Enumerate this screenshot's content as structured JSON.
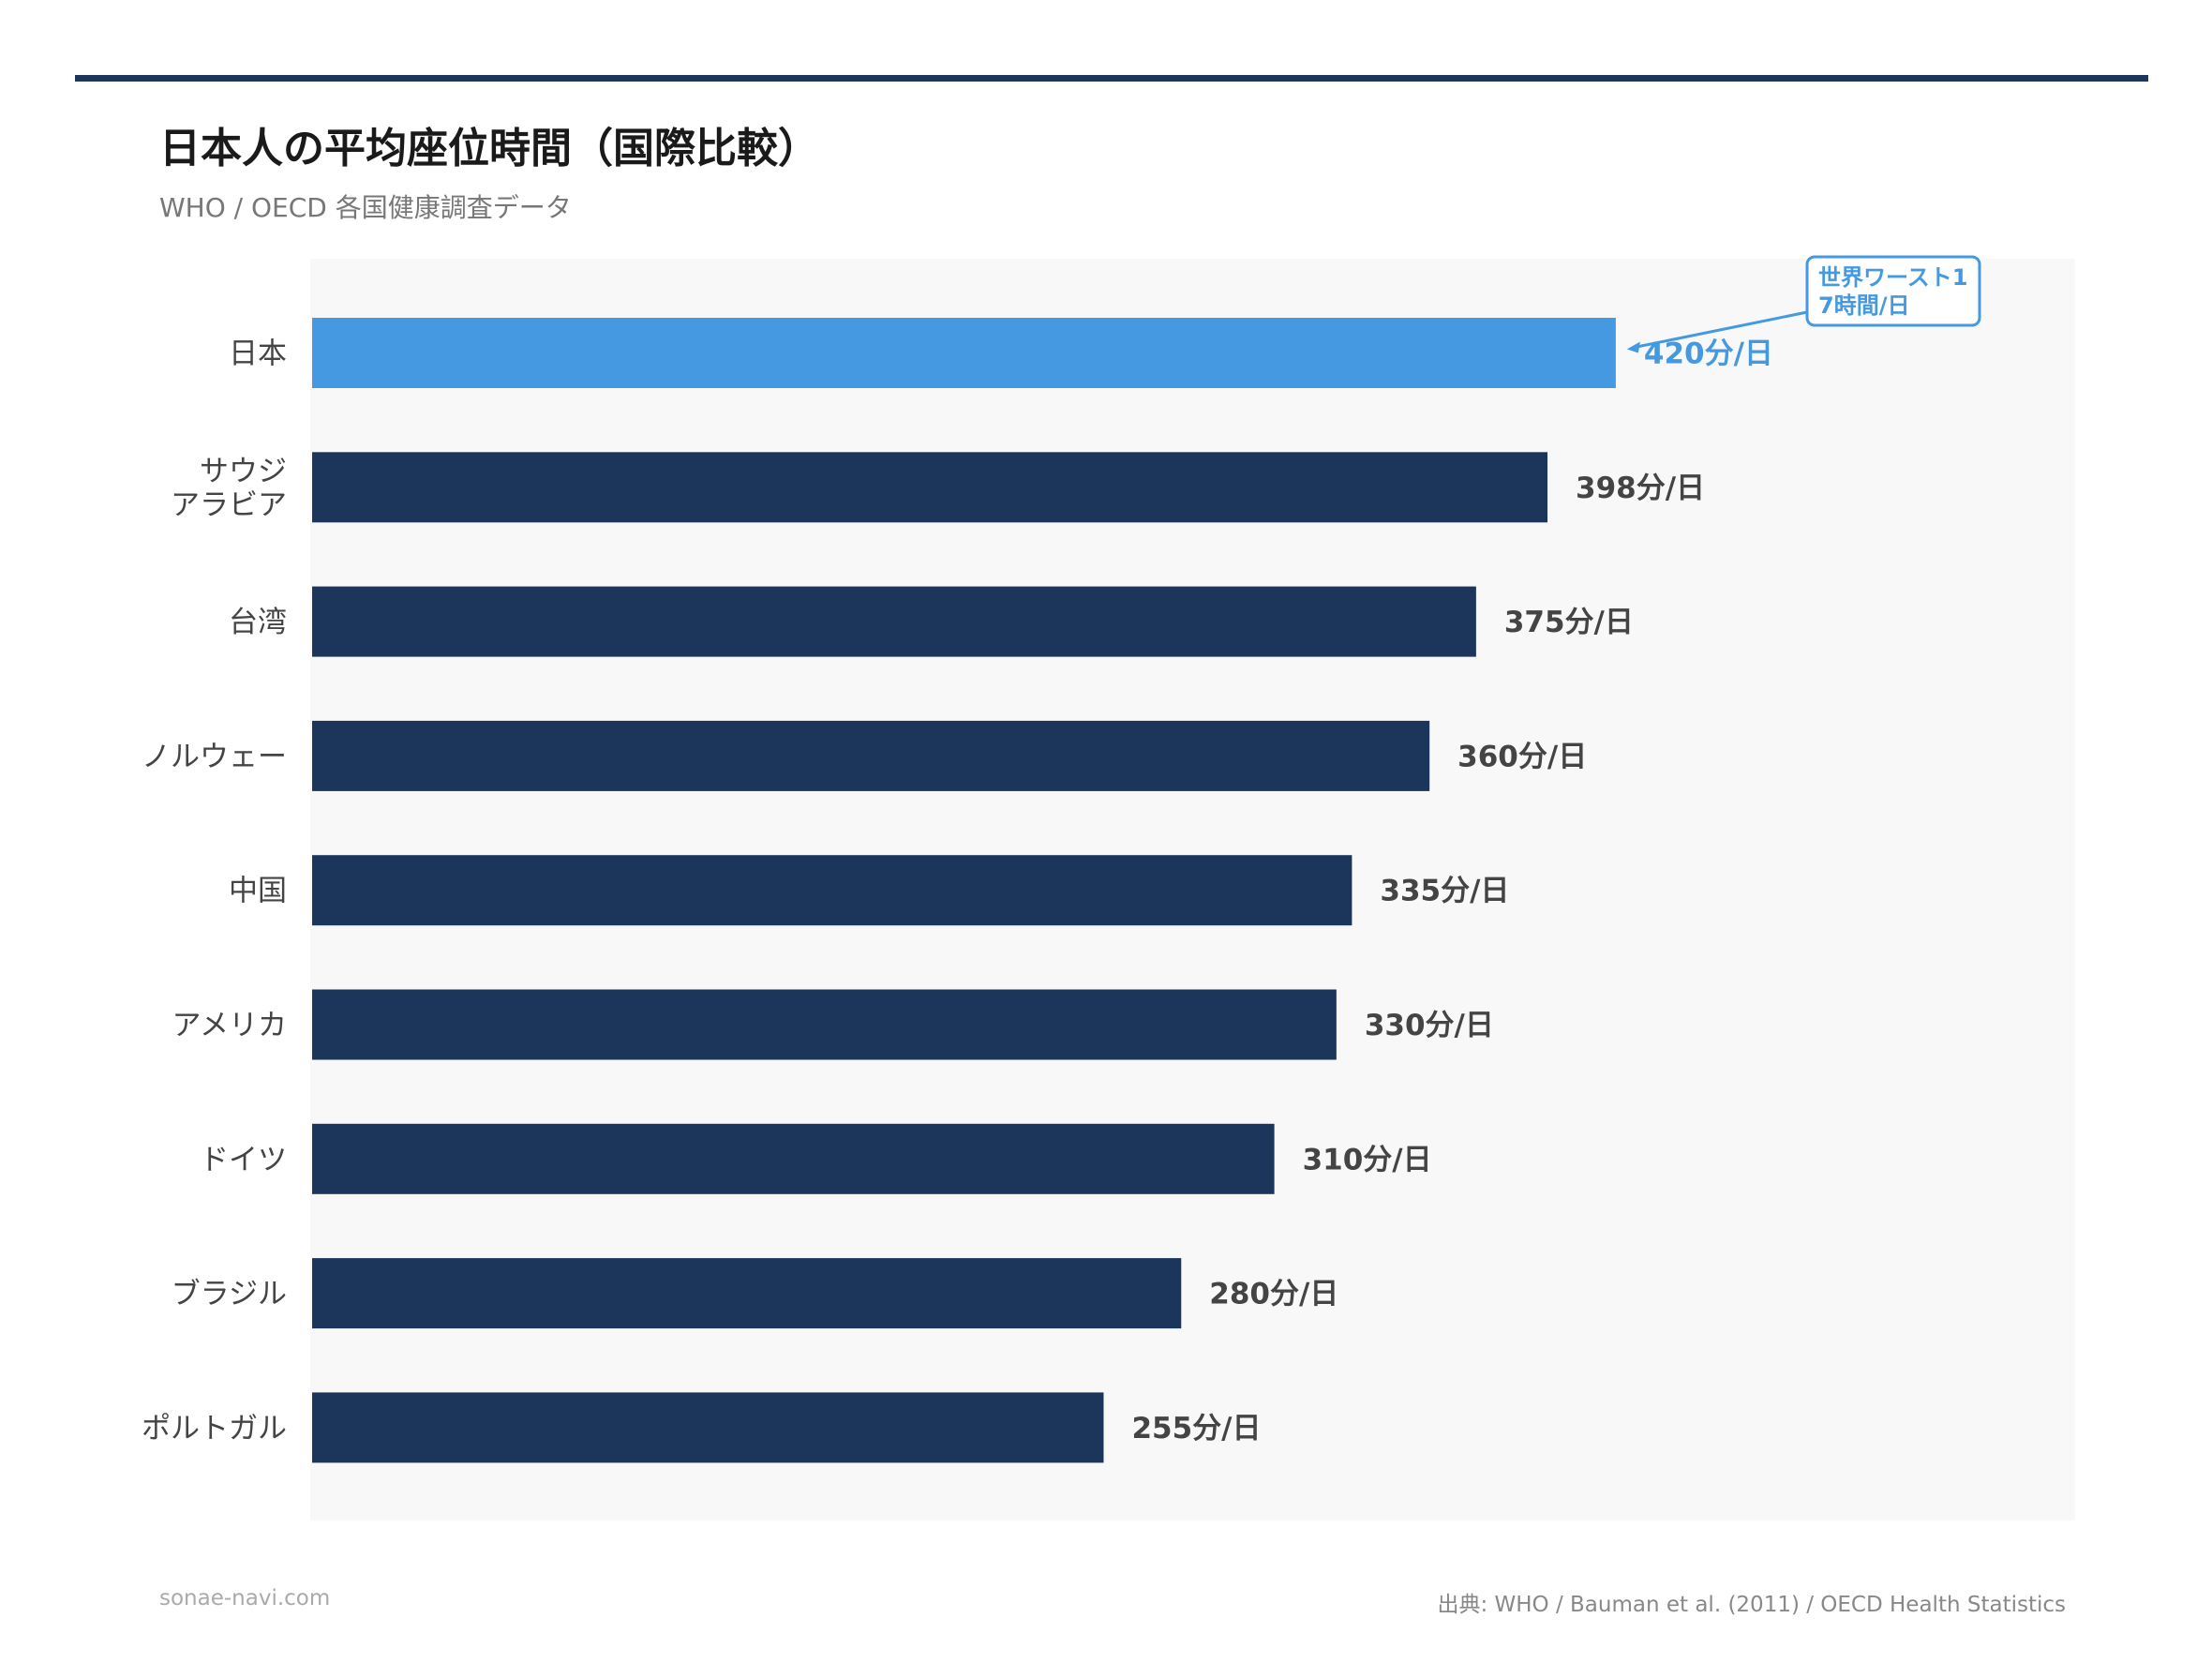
{
  "title": "日本人の平均座位時間（国際比較）",
  "subtitle": "WHO / OECD 各国健康調査データ",
  "footer": {
    "site": "sonae-navi.com",
    "source": "出典: WHO / Bauman et al. (2011) / OECD Health Statistics"
  },
  "colors": {
    "highlight": "#4499e0",
    "bar": "#1c355a",
    "plot_background": "#f8f8f8",
    "value_label": "#444444",
    "category_label": "#444444",
    "rule": "#1c355a"
  },
  "chart_data": {
    "type": "bar",
    "orientation": "horizontal",
    "categories": [
      "日本",
      "サウジ\nアラビア",
      "台湾",
      "ノルウェー",
      "中国",
      "アメリカ",
      "ドイツ",
      "ブラジル",
      "ポルトガル"
    ],
    "values": [
      420,
      398,
      375,
      360,
      335,
      330,
      310,
      280,
      255
    ],
    "value_labels": [
      "420分/日",
      "398分/日",
      "375分/日",
      "360分/日",
      "335分/日",
      "330分/日",
      "310分/日",
      "280分/日",
      "255分/日"
    ],
    "highlight_index": 0,
    "xlim": [
      0,
      568
    ],
    "grid": false,
    "title": "日本人の平均座位時間（国際比較）",
    "annotations": [
      {
        "category": "日本",
        "lines": [
          "世界ワースト1",
          "7時間/日"
        ]
      }
    ]
  }
}
